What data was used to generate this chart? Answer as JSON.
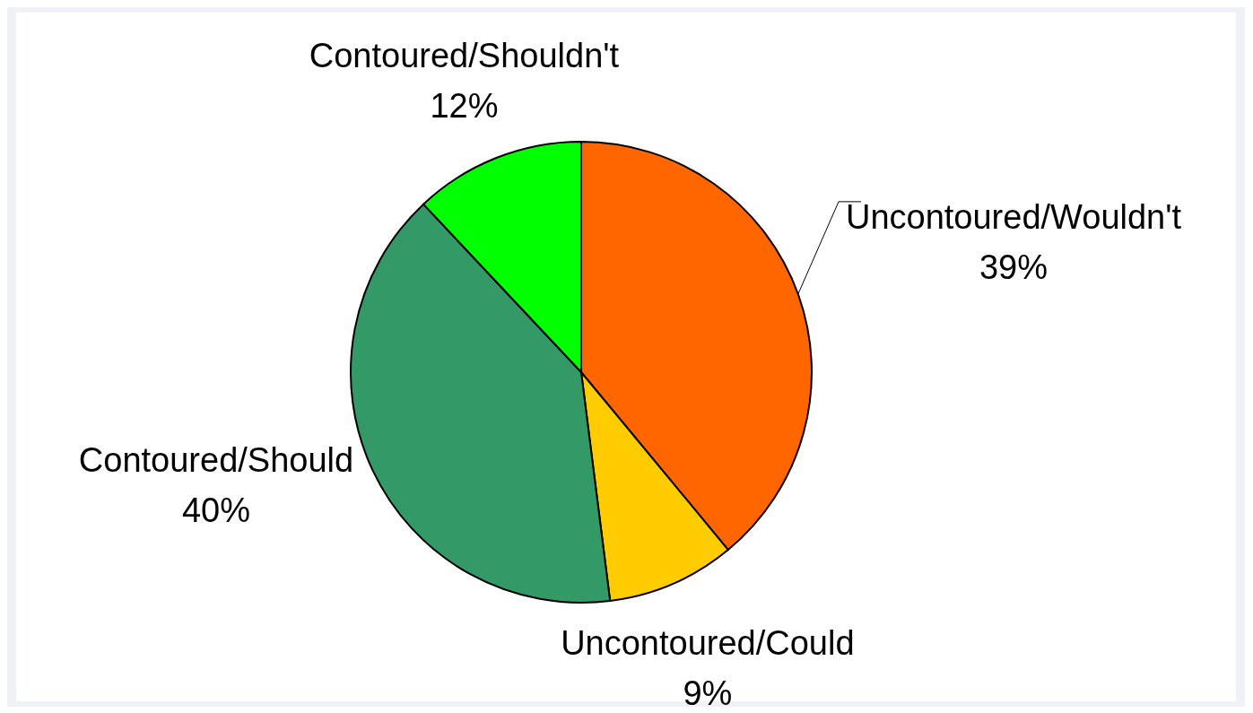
{
  "chart_data": {
    "type": "pie",
    "categories": [
      "Uncontoured/Wouldn't",
      "Uncontoured/Could",
      "Contoured/Should",
      "Contoured/Shouldn't"
    ],
    "values": [
      39,
      9,
      40,
      12
    ],
    "colors": [
      "#ff6600",
      "#ffcc00",
      "#339966",
      "#00ff00"
    ],
    "value_labels": [
      "39%",
      "9%",
      "40%",
      "12%"
    ]
  }
}
